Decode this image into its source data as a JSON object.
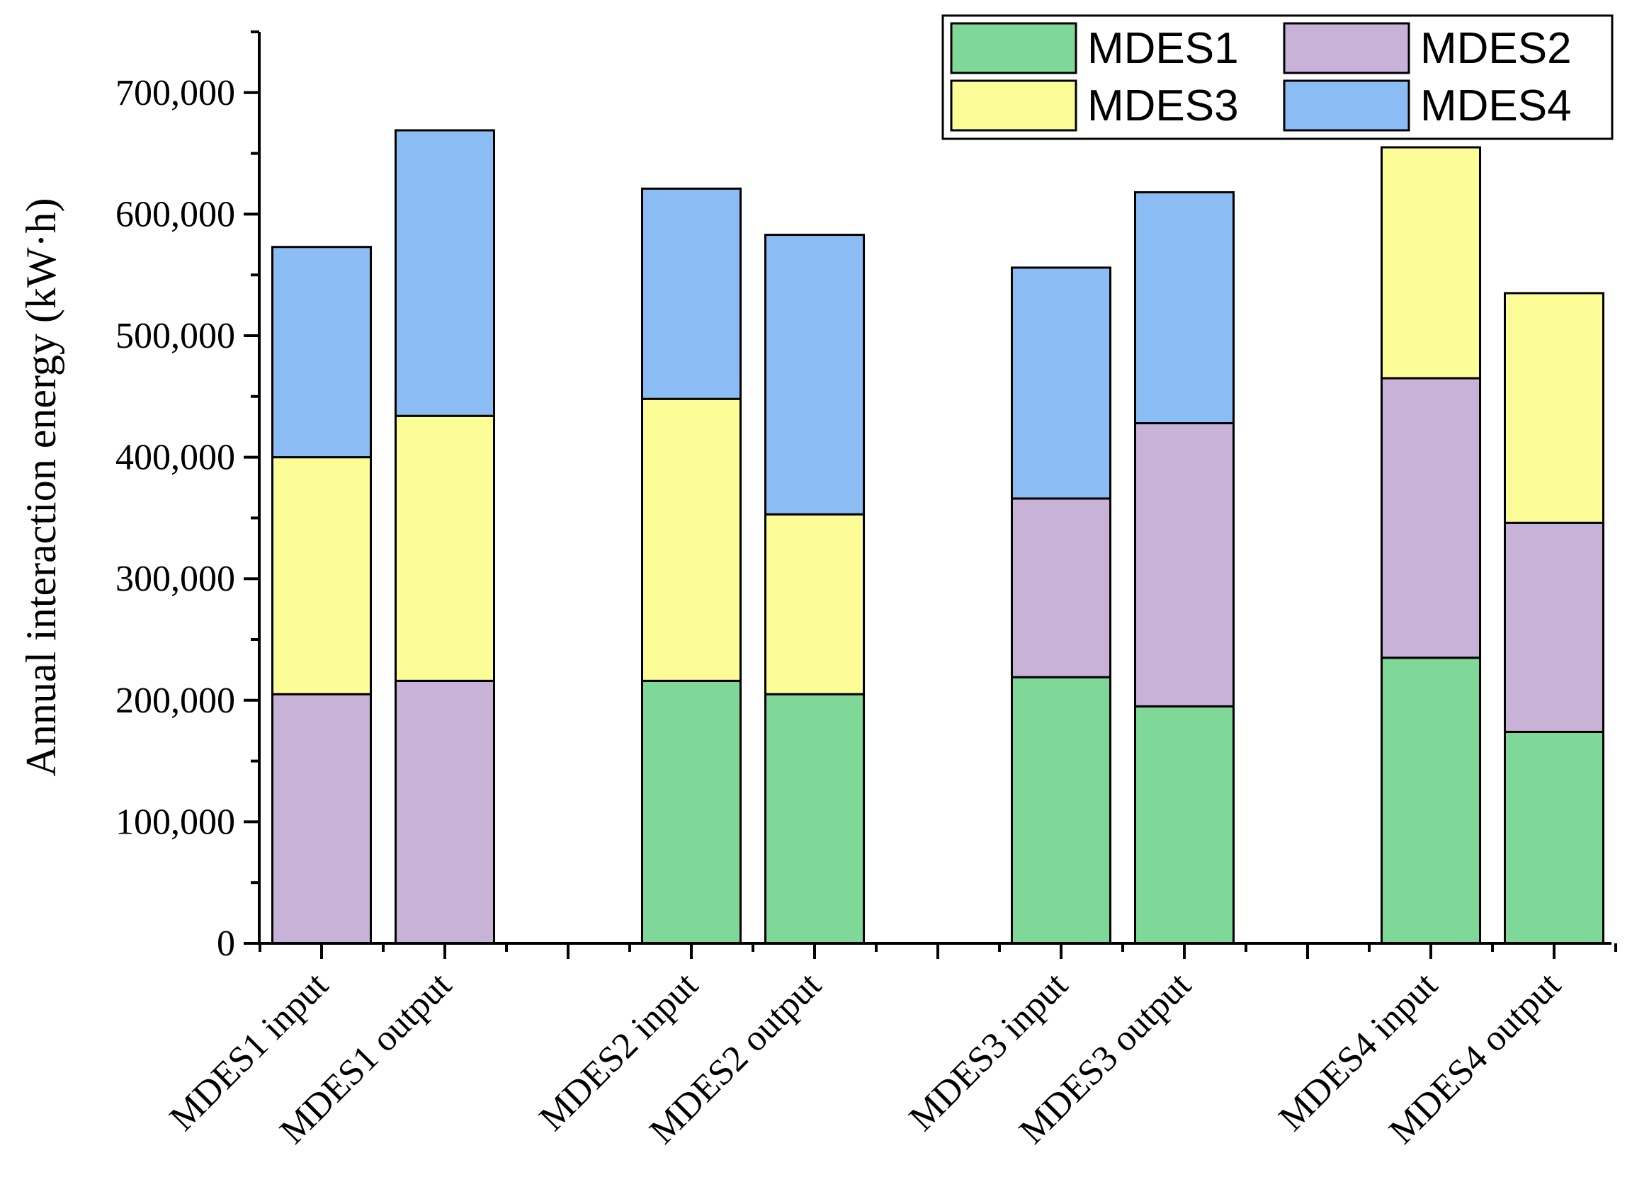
{
  "chart_data": {
    "type": "bar",
    "stacked": true,
    "title": "",
    "xlabel": "",
    "ylabel": "Annual interaction energy (kW·h)",
    "ylim": [
      0,
      750000
    ],
    "yticks": [
      0,
      100000,
      200000,
      300000,
      400000,
      500000,
      600000,
      700000
    ],
    "ytick_labels": [
      "0",
      "100,000",
      "200,000",
      "300,000",
      "400,000",
      "500,000",
      "600,000",
      "700,000"
    ],
    "legend_position": "top-right",
    "grid": false,
    "slots": [
      1,
      2,
      4,
      5,
      7,
      8,
      10,
      11
    ],
    "xtick_slots": [
      1,
      2,
      3,
      4,
      5,
      6,
      7,
      8,
      9,
      10,
      11
    ],
    "categories": [
      "MDES1 input",
      "MDES1 output",
      "MDES2 input",
      "MDES2 output",
      "MDES3 input",
      "MDES3 output",
      "MDES4 input",
      "MDES4 output"
    ],
    "series": [
      {
        "name": "MDES1",
        "color": "#7fd898",
        "values": [
          0,
          0,
          216000,
          205000,
          219000,
          195000,
          235000,
          174000
        ]
      },
      {
        "name": "MDES2",
        "color": "#c8b2d8",
        "values": [
          205000,
          216000,
          0,
          0,
          147000,
          233000,
          230000,
          172000
        ]
      },
      {
        "name": "MDES3",
        "color": "#fdfd98",
        "values": [
          195000,
          218000,
          232000,
          148000,
          0,
          0,
          190000,
          189000
        ]
      },
      {
        "name": "MDES4",
        "color": "#8cbcf4",
        "values": [
          173000,
          235000,
          173000,
          230000,
          190000,
          190000,
          0,
          0
        ]
      }
    ]
  }
}
